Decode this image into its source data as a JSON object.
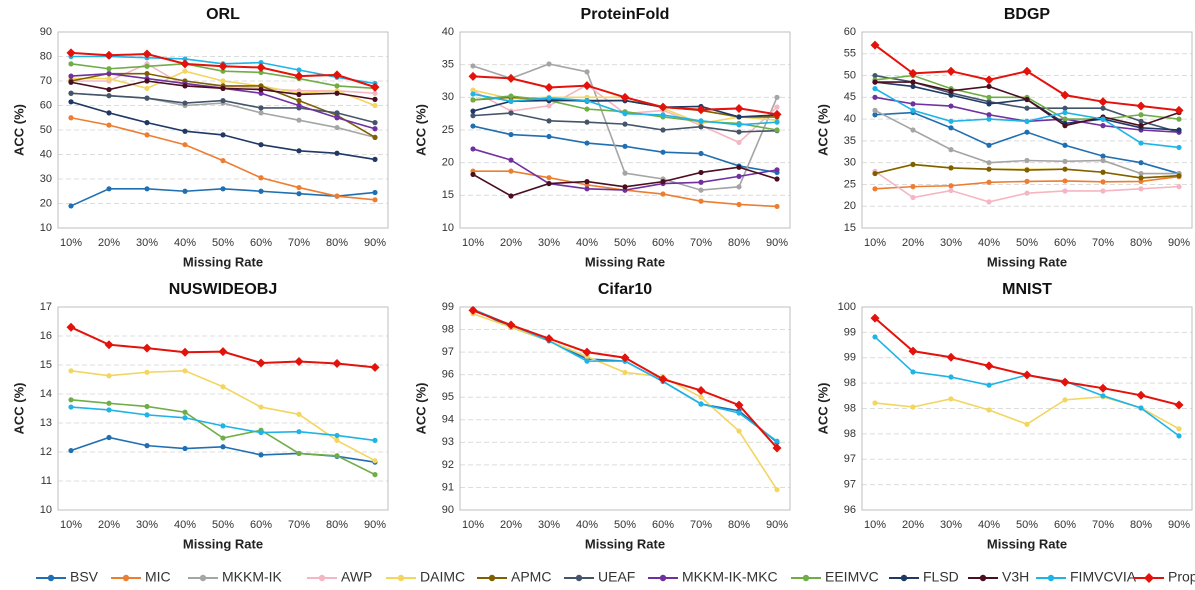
{
  "chart_data": [
    {
      "type": "line",
      "title": "ORL",
      "x_label": "Missing Rate",
      "y_label": "ACC (%)",
      "grid": true,
      "categories": [
        "10%",
        "20%",
        "30%",
        "40%",
        "50%",
        "60%",
        "70%",
        "80%",
        "90%"
      ],
      "ylim": [
        10,
        90
      ],
      "yticks": [
        10,
        20,
        30,
        40,
        50,
        60,
        70,
        80,
        90
      ],
      "series": [
        {
          "name": "BSV",
          "color": "#1f6fb2",
          "values": [
            19,
            26,
            26,
            25,
            26,
            25,
            24,
            23,
            24.5
          ]
        },
        {
          "name": "MIC",
          "color": "#ed7d31",
          "values": [
            55,
            52,
            48,
            44,
            37.5,
            30.5,
            26.5,
            23,
            21.5
          ]
        },
        {
          "name": "MKKM-IK",
          "color": "#a5a5a5",
          "values": [
            65,
            64,
            63,
            60,
            61,
            57,
            54,
            51,
            47
          ]
        },
        {
          "name": "AWP",
          "color": "#f4b6c2",
          "values": [
            70,
            70,
            77,
            68,
            68,
            67,
            66,
            66,
            65
          ]
        },
        {
          "name": "DAIMC",
          "color": "#f2d660",
          "values": [
            71,
            71,
            67,
            74,
            70,
            68,
            65,
            66,
            60
          ]
        },
        {
          "name": "APMC",
          "color": "#7f6000",
          "values": [
            70,
            73,
            73,
            70,
            68,
            68,
            62,
            56,
            47
          ]
        },
        {
          "name": "UEAF",
          "color": "#44546a",
          "values": [
            65,
            64,
            63,
            61,
            62,
            59,
            59,
            57,
            53
          ]
        },
        {
          "name": "MKKM-IK-MKC",
          "color": "#7030a0",
          "values": [
            72,
            73,
            71,
            69,
            67,
            65,
            60,
            55,
            50.5
          ]
        },
        {
          "name": "EEIMVC",
          "color": "#70ad47",
          "values": [
            77,
            75,
            76,
            77,
            74,
            73.5,
            71,
            68,
            67
          ]
        },
        {
          "name": "FLSD",
          "color": "#1f3864",
          "values": [
            61.5,
            57,
            53,
            49.5,
            48,
            44,
            41.5,
            40.5,
            38
          ]
        },
        {
          "name": "V3H",
          "color": "#4a0e1e",
          "values": [
            69.5,
            66.5,
            70,
            68,
            67,
            66.5,
            64.5,
            65,
            62.5
          ]
        },
        {
          "name": "FIMVCVIA",
          "color": "#1fb4e6",
          "values": [
            80,
            80,
            79.5,
            79,
            77,
            77.5,
            74.5,
            71.5,
            69
          ]
        },
        {
          "name": "Proposed",
          "color": "#e3120b",
          "marker": "diamond",
          "values": [
            81.5,
            80.5,
            81,
            77,
            76,
            75.5,
            72,
            72.5,
            67.5
          ]
        }
      ]
    },
    {
      "type": "line",
      "title": "ProteinFold",
      "x_label": "Missing Rate",
      "y_label": "ACC (%)",
      "grid": true,
      "categories": [
        "10%",
        "20%",
        "30%",
        "40%",
        "50%",
        "60%",
        "70%",
        "80%",
        "90%"
      ],
      "ylim": [
        10,
        40
      ],
      "yticks": [
        10,
        15,
        20,
        25,
        30,
        35,
        40
      ],
      "series": [
        {
          "name": "BSV",
          "color": "#1f6fb2",
          "values": [
            25.6,
            24.3,
            24,
            23,
            22.5,
            21.6,
            21.4,
            19.5,
            18.5
          ]
        },
        {
          "name": "MIC",
          "color": "#ed7d31",
          "values": [
            18.7,
            18.7,
            17.7,
            16.6,
            15.8,
            15.2,
            14.1,
            13.6,
            13.3
          ]
        },
        {
          "name": "MKKM-IK",
          "color": "#a5a5a5",
          "values": [
            34.8,
            32.9,
            35.1,
            33.9,
            18.4,
            17.5,
            15.8,
            16.3,
            30
          ]
        },
        {
          "name": "AWP",
          "color": "#f4b6c2",
          "values": [
            31,
            27.9,
            28.7,
            31.9,
            27.5,
            28,
            25.7,
            23.1,
            28.5
          ]
        },
        {
          "name": "DAIMC",
          "color": "#f2d660",
          "values": [
            31.1,
            29.8,
            30,
            30,
            30,
            28.3,
            26,
            27,
            26.5
          ]
        },
        {
          "name": "APMC",
          "color": "#7f6000",
          "values": [
            29.6,
            30,
            29.7,
            29.4,
            29.5,
            28.5,
            28,
            27,
            27
          ]
        },
        {
          "name": "UEAF",
          "color": "#44546a",
          "values": [
            27.2,
            27.6,
            26.4,
            26.2,
            25.9,
            25,
            25.5,
            24.7,
            24.9
          ]
        },
        {
          "name": "MKKM-IK-MKC",
          "color": "#7030a0",
          "values": [
            22.1,
            20.4,
            16.8,
            16,
            15.8,
            16.8,
            17,
            17.9,
            18.9
          ]
        },
        {
          "name": "EEIMVC",
          "color": "#70ad47",
          "values": [
            29.6,
            30.2,
            29.5,
            28.2,
            27.8,
            27,
            26.3,
            26,
            25
          ]
        },
        {
          "name": "FLSD",
          "color": "#1f3864",
          "values": [
            27.9,
            29.4,
            29.5,
            29.5,
            29.5,
            28.5,
            28.6,
            27,
            27.3
          ]
        },
        {
          "name": "V3H",
          "color": "#4a0e1e",
          "values": [
            18.2,
            14.9,
            16.8,
            17.1,
            16.3,
            17.1,
            18.5,
            19.3,
            17.5
          ]
        },
        {
          "name": "FIMVCVIA",
          "color": "#1fb4e6",
          "values": [
            30.5,
            29.4,
            29.9,
            29.5,
            27.5,
            27.3,
            26.4,
            25.8,
            26.2
          ]
        },
        {
          "name": "Proposed",
          "color": "#e3120b",
          "marker": "diamond",
          "values": [
            33.2,
            32.9,
            31.5,
            31.8,
            30,
            28.5,
            28.1,
            28.3,
            27.4
          ]
        }
      ]
    },
    {
      "type": "line",
      "title": "BDGP",
      "x_label": "Missing Rate",
      "y_label": "ACC (%)",
      "grid": true,
      "categories": [
        "10%",
        "20%",
        "30%",
        "40%",
        "50%",
        "60%",
        "70%",
        "80%",
        "90%"
      ],
      "ylim": [
        15,
        60
      ],
      "yticks": [
        15,
        20,
        25,
        30,
        35,
        40,
        45,
        50,
        55,
        60
      ],
      "series": [
        {
          "name": "BSV",
          "color": "#1f6fb2",
          "values": [
            41,
            41.5,
            38,
            34,
            37,
            34,
            31.5,
            30,
            27.5
          ]
        },
        {
          "name": "MIC",
          "color": "#ed7d31",
          "values": [
            24,
            24.5,
            24.7,
            25.5,
            25.7,
            25.8,
            25.6,
            25.7,
            26.8
          ]
        },
        {
          "name": "MKKM-IK",
          "color": "#a5a5a5",
          "values": [
            42,
            37.5,
            33,
            30,
            30.5,
            30.3,
            30.5,
            27.5,
            27.5
          ]
        },
        {
          "name": "AWP",
          "color": "#f4b6c2",
          "values": [
            28,
            22,
            23.6,
            21,
            23,
            23.5,
            23.5,
            24,
            24.5
          ]
        },
        {
          "name": "DAIMC",
          "color": "#f2d660",
          "values": [
            27.5,
            29.5,
            28.8,
            28.5,
            28.5,
            28.5,
            27.8,
            26.5,
            27
          ]
        },
        {
          "name": "APMC",
          "color": "#7f6000",
          "values": [
            27.5,
            29.6,
            28.8,
            28.5,
            28.3,
            28.5,
            27.8,
            26.5,
            27
          ]
        },
        {
          "name": "UEAF",
          "color": "#44546a",
          "values": [
            50,
            48.5,
            46,
            44,
            42.5,
            42.5,
            42.5,
            39.5,
            37
          ]
        },
        {
          "name": "MKKM-IK-MKC",
          "color": "#7030a0",
          "values": [
            45,
            43.5,
            43,
            41,
            39.5,
            40,
            38.5,
            37.5,
            37
          ]
        },
        {
          "name": "EEIMVC",
          "color": "#70ad47",
          "values": [
            49,
            50,
            47,
            45,
            45,
            40,
            40,
            41,
            40
          ]
        },
        {
          "name": "FLSD",
          "color": "#1f3864",
          "values": [
            48.5,
            47.5,
            45.5,
            43.5,
            44.5,
            39,
            40,
            38,
            37.5
          ]
        },
        {
          "name": "V3H",
          "color": "#4a0e1e",
          "values": [
            48.5,
            48.5,
            46.5,
            47.5,
            44.5,
            38.5,
            40.5,
            38.5,
            41.5
          ]
        },
        {
          "name": "FIMVCVIA",
          "color": "#1fb4e6",
          "values": [
            47,
            42,
            39.5,
            40,
            39.5,
            41.5,
            40,
            34.5,
            33.5
          ]
        },
        {
          "name": "Proposed",
          "color": "#e3120b",
          "marker": "diamond",
          "values": [
            57,
            50.5,
            51,
            49,
            51,
            45.5,
            44,
            43,
            42
          ]
        }
      ]
    },
    {
      "type": "line",
      "title": "NUSWIDEOBJ",
      "x_label": "Missing Rate",
      "y_label": "ACC (%)",
      "grid": true,
      "categories": [
        "10%",
        "20%",
        "30%",
        "40%",
        "50%",
        "60%",
        "70%",
        "80%",
        "90%"
      ],
      "ylim": [
        10,
        17
      ],
      "yticks": [
        10,
        11,
        12,
        13,
        14,
        15,
        16,
        17
      ],
      "series": [
        {
          "name": "BSV",
          "color": "#1f6fb2",
          "values": [
            12.05,
            12.5,
            12.22,
            12.12,
            12.18,
            11.9,
            11.95,
            11.85,
            11.65
          ]
        },
        {
          "name": "DAIMC",
          "color": "#f2d660",
          "values": [
            14.8,
            14.63,
            14.75,
            14.8,
            14.25,
            13.55,
            13.3,
            12.4,
            11.7
          ]
        },
        {
          "name": "EEIMVC",
          "color": "#70ad47",
          "values": [
            13.8,
            13.68,
            13.57,
            13.37,
            12.48,
            12.75,
            11.95,
            11.87,
            11.22
          ]
        },
        {
          "name": "FIMVCVIA",
          "color": "#1fb4e6",
          "values": [
            13.55,
            13.45,
            13.28,
            13.18,
            12.9,
            12.67,
            12.7,
            12.57,
            12.4
          ]
        },
        {
          "name": "Proposed",
          "color": "#e3120b",
          "marker": "diamond",
          "values": [
            16.3,
            15.7,
            15.58,
            15.44,
            15.46,
            15.07,
            15.12,
            15.05,
            14.92
          ]
        }
      ]
    },
    {
      "type": "line",
      "title": "Cifar10",
      "x_label": "Missing Rate",
      "y_label": "ACC (%)",
      "grid": true,
      "categories": [
        "10%",
        "20%",
        "30%",
        "40%",
        "50%",
        "60%",
        "70%",
        "80%",
        "90%"
      ],
      "ylim": [
        90,
        99
      ],
      "yticks": [
        90,
        91,
        92,
        93,
        94,
        95,
        96,
        97,
        98,
        99
      ],
      "series": [
        {
          "name": "BSV",
          "color": "#1f6fb2",
          "values": [
            98.9,
            98.1,
            97.5,
            96.7,
            96.6,
            95.7,
            94.7,
            94.4,
            93
          ]
        },
        {
          "name": "DAIMC",
          "color": "#f2d660",
          "values": [
            98.7,
            98.1,
            97.5,
            96.8,
            96.1,
            95.9,
            95,
            93.5,
            90.9
          ]
        },
        {
          "name": "FIMVCVIA",
          "color": "#1fb4e6",
          "values": [
            98.9,
            98.2,
            97.5,
            96.6,
            96.6,
            95.7,
            94.7,
            94.3,
            93.05
          ]
        },
        {
          "name": "Proposed",
          "color": "#e3120b",
          "marker": "diamond",
          "values": [
            98.85,
            98.2,
            97.6,
            97,
            96.75,
            95.8,
            95.3,
            94.65,
            92.75
          ]
        }
      ]
    },
    {
      "type": "line",
      "title": "MNIST",
      "x_label": "Missing Rate",
      "y_label": "ACC (%)",
      "grid": true,
      "categories": [
        "10%",
        "20%",
        "30%",
        "40%",
        "50%",
        "60%",
        "70%",
        "80%",
        "90%"
      ],
      "ylim": [
        96,
        100
      ],
      "yticks": [
        96,
        {
          "value": 96.5,
          "label": "97"
        },
        97,
        {
          "value": 97.5,
          "label": "98"
        },
        98,
        {
          "value": 98.5,
          "label": "98"
        },
        99,
        {
          "value": 99.5,
          "label": "99"
        },
        100
      ],
      "series": [
        {
          "name": "DAIMC",
          "color": "#f2d660",
          "values": [
            98.11,
            98.03,
            98.19,
            97.97,
            97.69,
            98.17,
            98.23,
            98.01,
            97.6
          ]
        },
        {
          "name": "FIMVCVIA",
          "color": "#1fb4e6",
          "values": [
            99.41,
            98.72,
            98.62,
            98.46,
            98.66,
            98.54,
            98.25,
            98.01,
            97.46
          ]
        },
        {
          "name": "Proposed",
          "color": "#e3120b",
          "marker": "diamond",
          "values": [
            99.78,
            99.13,
            99.01,
            98.84,
            98.66,
            98.52,
            98.4,
            98.26,
            98.07
          ]
        }
      ]
    }
  ]
}
